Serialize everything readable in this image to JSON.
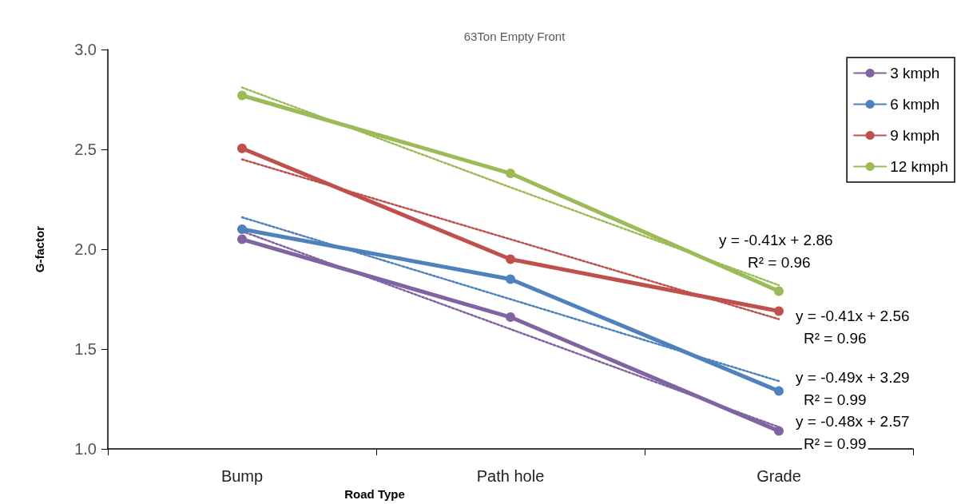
{
  "chart_data": {
    "type": "line",
    "title": "63Ton Empty Front",
    "xlabel": "Road Type",
    "ylabel": "G-factor",
    "categories": [
      "Bump",
      "Path hole",
      "Grade"
    ],
    "series": [
      {
        "name": "3 kmph",
        "color": "#8064a2",
        "values": [
          2.05,
          1.66,
          1.09
        ]
      },
      {
        "name": "6 kmph",
        "color": "#4f81bd",
        "values": [
          2.1,
          1.85,
          1.29
        ]
      },
      {
        "name": "9 kmph",
        "color": "#c0504d",
        "values": [
          2.505,
          1.95,
          1.69
        ]
      },
      {
        "name": "12 kmph",
        "color": "#9bbb59",
        "values": [
          2.77,
          2.38,
          1.79
        ]
      },
      {
        "type": "line",
        "x": [
          "Bump",
          "Path hole",
          "Grade"
        ],
        "color": "#8064a2",
        "values": [
          2.09,
          1.6,
          1.11
        ],
        "line_style": "dotted",
        "marker": "none"
      },
      {
        "type": "line",
        "x": [
          "Bump",
          "Path hole",
          "Grade"
        ],
        "color": "#4f81bd",
        "values": [
          2.16,
          1.75,
          1.34
        ],
        "line_style": "dotted",
        "marker": "none"
      },
      {
        "type": "line",
        "x": [
          "Bump",
          "Path hole",
          "Grade"
        ],
        "color": "#c0504d",
        "values": [
          2.45,
          2.05,
          1.65
        ],
        "line_style": "dotted",
        "marker": "none"
      },
      {
        "type": "line",
        "x": [
          "Bump",
          "Path hole",
          "Grade"
        ],
        "color": "#9bbb59",
        "values": [
          2.81,
          2.31,
          1.82
        ],
        "line_style": "dotted",
        "marker": "none"
      }
    ],
    "annotations": [
      "y = -0.41x + 2.86",
      "R² = 0.96",
      "y = -0.41x + 2.56",
      "R² = 0.96",
      "y = -0.49x + 3.29",
      "R² = 0.99",
      "y = -0.48x + 2.57",
      "R² = 0.99"
    ],
    "ylim": [
      1.0,
      3.0
    ],
    "yticks": [
      {
        "value": 1.0,
        "label": "1.0"
      },
      {
        "value": 1.5,
        "label": "1.5"
      },
      {
        "value": 2.0,
        "label": "2.0"
      },
      {
        "value": 2.5,
        "label": "2.5"
      },
      {
        "value": 3.0,
        "label": "3.0"
      }
    ],
    "grid": false,
    "legend": "top right",
    "marker": "circle",
    "line_style": "solid"
  }
}
